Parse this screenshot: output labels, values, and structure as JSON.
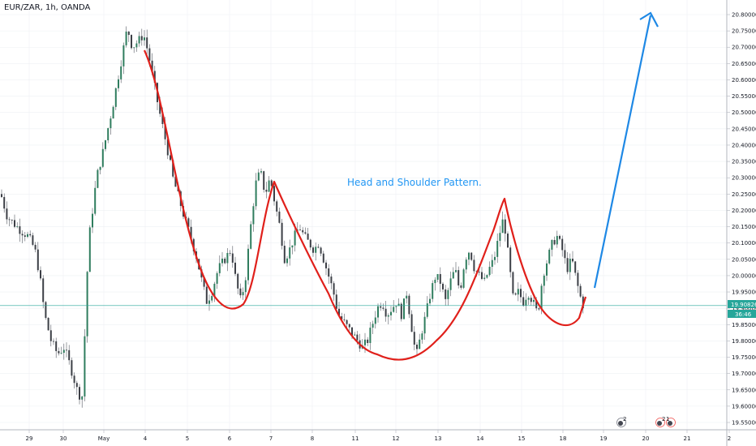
{
  "header": {
    "symbol": "EUR/ZAR, 1h, OANDA"
  },
  "annotation": {
    "text": "Head and Shoulder Pattern."
  },
  "chart_data": {
    "type": "candlestick",
    "y_axis": {
      "min": 19.55,
      "max": 20.8,
      "step": 0.05,
      "position": "right",
      "ticks": [
        "20.80000",
        "20.75000",
        "20.70000",
        "20.65000",
        "20.60000",
        "20.55000",
        "20.50000",
        "20.45000",
        "20.40000",
        "20.35000",
        "20.30000",
        "20.25000",
        "20.20000",
        "20.15000",
        "20.10000",
        "20.05000",
        "20.00000",
        "19.95000",
        "19.90000",
        "19.85000",
        "19.80000",
        "19.75000",
        "19.70000",
        "19.65000",
        "19.60000",
        "19.55000"
      ]
    },
    "x_axis": {
      "ticks": [
        "29",
        "30",
        "May",
        "4",
        "5",
        "6",
        "7",
        "8",
        "11",
        "12",
        "13",
        "14",
        "15",
        "18",
        "19",
        "20",
        "21",
        "2"
      ]
    },
    "current_price": {
      "value": "19.90826",
      "countdown": "36:46",
      "line_value": 19.9083
    },
    "colors": {
      "up": "#26a69a",
      "down": "#ef5350",
      "candle_body": "#4a4a4a",
      "pattern": "#e0201b",
      "arrow": "#1e88e5",
      "price_tag": "#26a69a",
      "grid": "#eef0f3"
    },
    "event_badges": [
      {
        "label": "2"
      },
      {
        "label": "2"
      },
      {
        "label": "1"
      }
    ],
    "price_path": [
      [
        0,
        20.25
      ],
      [
        8,
        20.18
      ],
      [
        16,
        20.16
      ],
      [
        24,
        20.14
      ],
      [
        34,
        20.12
      ],
      [
        42,
        20.08
      ],
      [
        48,
        20.0
      ],
      [
        54,
        19.88
      ],
      [
        62,
        19.8
      ],
      [
        70,
        19.76
      ],
      [
        78,
        19.78
      ],
      [
        86,
        19.72
      ],
      [
        94,
        19.65
      ],
      [
        100,
        19.62
      ],
      [
        104,
        19.85
      ],
      [
        108,
        20.1
      ],
      [
        112,
        20.18
      ],
      [
        118,
        20.3
      ],
      [
        126,
        20.38
      ],
      [
        132,
        20.45
      ],
      [
        138,
        20.52
      ],
      [
        144,
        20.6
      ],
      [
        150,
        20.68
      ],
      [
        156,
        20.76
      ],
      [
        162,
        20.7
      ],
      [
        170,
        20.72
      ],
      [
        176,
        20.74
      ],
      [
        182,
        20.68
      ],
      [
        188,
        20.6
      ],
      [
        194,
        20.52
      ],
      [
        200,
        20.45
      ],
      [
        206,
        20.38
      ],
      [
        212,
        20.3
      ],
      [
        218,
        20.25
      ],
      [
        226,
        20.18
      ],
      [
        234,
        20.12
      ],
      [
        242,
        20.05
      ],
      [
        248,
        19.98
      ],
      [
        254,
        19.92
      ],
      [
        260,
        19.95
      ],
      [
        268,
        20.02
      ],
      [
        276,
        20.05
      ],
      [
        284,
        20.08
      ],
      [
        290,
        19.98
      ],
      [
        296,
        19.92
      ],
      [
        302,
        20.0
      ],
      [
        308,
        20.15
      ],
      [
        314,
        20.28
      ],
      [
        320,
        20.32
      ],
      [
        326,
        20.25
      ],
      [
        332,
        20.3
      ],
      [
        338,
        20.22
      ],
      [
        344,
        20.15
      ],
      [
        350,
        20.05
      ],
      [
        356,
        20.08
      ],
      [
        362,
        20.12
      ],
      [
        368,
        20.15
      ],
      [
        374,
        20.12
      ],
      [
        380,
        20.1
      ],
      [
        386,
        20.08
      ],
      [
        392,
        20.1
      ],
      [
        398,
        20.05
      ],
      [
        404,
        20.0
      ],
      [
        410,
        19.95
      ],
      [
        416,
        19.88
      ],
      [
        422,
        19.86
      ],
      [
        428,
        19.84
      ],
      [
        434,
        19.82
      ],
      [
        440,
        19.8
      ],
      [
        446,
        19.78
      ],
      [
        452,
        19.8
      ],
      [
        458,
        19.85
      ],
      [
        464,
        19.9
      ],
      [
        470,
        19.92
      ],
      [
        476,
        19.88
      ],
      [
        482,
        19.9
      ],
      [
        488,
        19.92
      ],
      [
        494,
        19.88
      ],
      [
        500,
        19.95
      ],
      [
        506,
        19.85
      ],
      [
        512,
        19.75
      ],
      [
        518,
        19.82
      ],
      [
        524,
        19.88
      ],
      [
        530,
        19.95
      ],
      [
        536,
        20.0
      ],
      [
        542,
        19.98
      ],
      [
        548,
        19.92
      ],
      [
        554,
        19.98
      ],
      [
        560,
        20.02
      ],
      [
        566,
        19.95
      ],
      [
        572,
        20.05
      ],
      [
        578,
        20.08
      ],
      [
        584,
        20.02
      ],
      [
        590,
        20.0
      ],
      [
        596,
        19.98
      ],
      [
        602,
        20.02
      ],
      [
        608,
        20.05
      ],
      [
        614,
        20.12
      ],
      [
        620,
        20.18
      ],
      [
        626,
        20.05
      ],
      [
        632,
        19.92
      ],
      [
        638,
        19.95
      ],
      [
        644,
        19.92
      ],
      [
        650,
        19.95
      ],
      [
        656,
        19.92
      ],
      [
        662,
        19.88
      ],
      [
        668,
        20.0
      ],
      [
        674,
        20.05
      ],
      [
        680,
        20.1
      ],
      [
        686,
        20.12
      ],
      [
        692,
        20.08
      ],
      [
        698,
        20.02
      ],
      [
        704,
        20.05
      ],
      [
        710,
        19.98
      ],
      [
        716,
        19.92
      ],
      [
        720,
        19.9
      ]
    ]
  }
}
